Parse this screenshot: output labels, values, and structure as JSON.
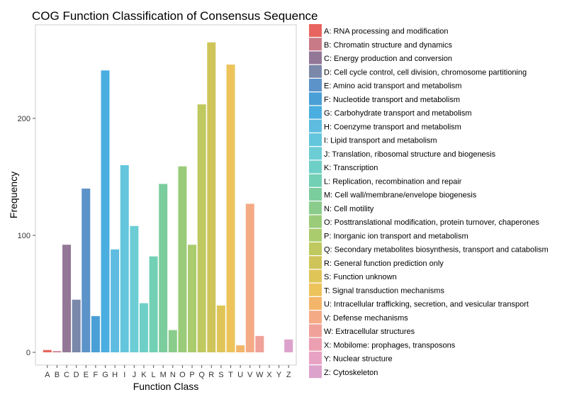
{
  "chart_data": {
    "type": "bar",
    "title": "COG Function Classification of Consensus Sequence",
    "xlabel": "Function Class",
    "ylabel": "Frequency",
    "ylim": [
      0,
      270
    ],
    "yticks": [
      0,
      100,
      200
    ],
    "grid": false,
    "legend_position": "right",
    "categories": [
      "A",
      "B",
      "C",
      "D",
      "E",
      "F",
      "G",
      "H",
      "I",
      "J",
      "K",
      "L",
      "M",
      "N",
      "O",
      "P",
      "Q",
      "R",
      "S",
      "T",
      "U",
      "V",
      "W",
      "X",
      "Y",
      "Z"
    ],
    "values": [
      2,
      1,
      92,
      45,
      140,
      31,
      241,
      88,
      160,
      108,
      42,
      82,
      144,
      19,
      159,
      92,
      212,
      265,
      40,
      246,
      6,
      127,
      14,
      0,
      0,
      11
    ],
    "colors": [
      "#e8655f",
      "#c97a87",
      "#937797",
      "#7a88aa",
      "#5c93c9",
      "#4a9fd6",
      "#4aaee0",
      "#5ebce0",
      "#63c6dd",
      "#6ccdd5",
      "#6ecfc6",
      "#72d0b4",
      "#7ccd9e",
      "#8acc8b",
      "#9acb79",
      "#aacc6d",
      "#bfc95f",
      "#cfc459",
      "#dfc558",
      "#edc45c",
      "#f2b56a",
      "#f4ab85",
      "#f0a29a",
      "#ec9fb0",
      "#e8a3c4",
      "#dca2cb"
    ],
    "legend_entries": [
      "A: RNA processing and modification",
      "B: Chromatin structure and dynamics",
      "C: Energy production and conversion",
      "D: Cell cycle control, cell division, chromosome partitioning",
      "E: Amino acid transport and metabolism",
      "F: Nucleotide transport and metabolism",
      "G: Carbohydrate transport and metabolism",
      "H: Coenzyme transport and metabolism",
      "I: Lipid transport and metabolism",
      "J: Translation, ribosomal structure and biogenesis",
      "K: Transcription",
      "L: Replication, recombination and repair",
      "M: Cell wall/membrane/envelope biogenesis",
      "N: Cell motility",
      "O: Posttranslational modification, protein turnover, chaperones",
      "P: Inorganic ion transport and metabolism",
      "Q: Secondary metabolites biosynthesis, transport and catabolism",
      "R: General function prediction only",
      "S: Function unknown",
      "T: Signal transduction mechanisms",
      "U: Intracellular trafficking, secretion, and vesicular transport",
      "V: Defense mechanisms",
      "W: Extracellular structures",
      "X: Mobilome: prophages, transposons",
      "Y: Nuclear structure",
      "Z: Cytoskeleton"
    ]
  }
}
